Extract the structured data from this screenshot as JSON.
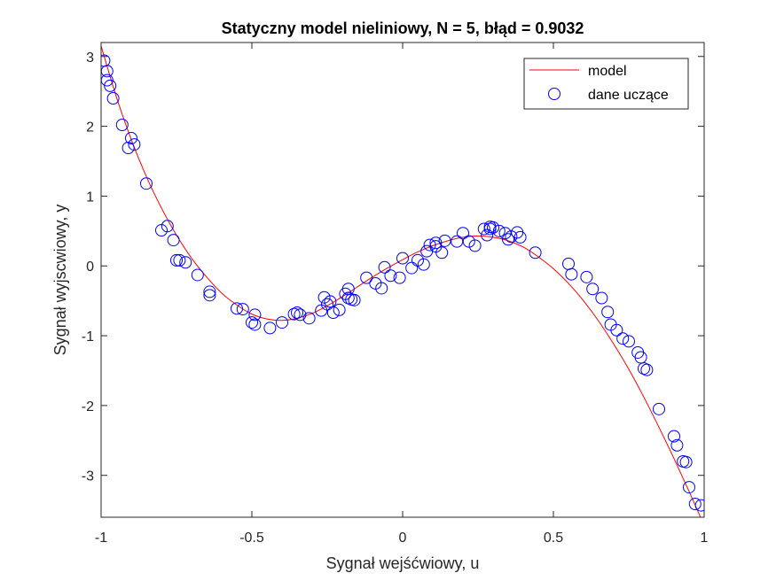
{
  "chart_data": {
    "type": "scatter",
    "title": "Statyczny model nieliniowy, N = 5, błąd = 0.9032",
    "xlabel": "Sygnał wejśćwiowy, u",
    "ylabel": "Sygnał wyjscwiowy, y",
    "xlim": [
      -1,
      1
    ],
    "ylim": [
      -3.6,
      3.2
    ],
    "x_ticks": [
      -1,
      -0.5,
      0,
      0.5,
      1
    ],
    "x_tick_labels": [
      "-1",
      "-0.5",
      "0",
      "0.5",
      "1"
    ],
    "y_ticks": [
      -3,
      -2,
      -1,
      0,
      1,
      2,
      3
    ],
    "y_tick_labels": [
      "-3",
      "-2",
      "-1",
      "0",
      "1",
      "2",
      "3"
    ],
    "grid": false,
    "legend": {
      "placement": "top-right",
      "entries": [
        "model",
        "dane uczące"
      ]
    },
    "series": [
      {
        "name": "model",
        "kind": "line",
        "color": "#ff0000",
        "x": [
          -1.0,
          -0.95,
          -0.9,
          -0.85,
          -0.8,
          -0.75,
          -0.7,
          -0.65,
          -0.6,
          -0.55,
          -0.5,
          -0.45,
          -0.4,
          -0.35,
          -0.3,
          -0.25,
          -0.2,
          -0.15,
          -0.1,
          -0.05,
          0.0,
          0.05,
          0.1,
          0.15,
          0.2,
          0.25,
          0.3,
          0.35,
          0.4,
          0.45,
          0.5,
          0.55,
          0.6,
          0.65,
          0.7,
          0.75,
          0.8,
          0.85,
          0.9,
          0.95,
          1.0
        ],
        "y": [
          3.15,
          2.43,
          1.81,
          1.28,
          0.83,
          0.44,
          0.11,
          -0.16,
          -0.39,
          -0.56,
          -0.69,
          -0.76,
          -0.78,
          -0.75,
          -0.68,
          -0.57,
          -0.44,
          -0.3,
          -0.16,
          -0.03,
          0.09,
          0.2,
          0.29,
          0.36,
          0.41,
          0.43,
          0.41,
          0.36,
          0.27,
          0.13,
          -0.04,
          -0.25,
          -0.5,
          -0.79,
          -1.12,
          -1.48,
          -1.88,
          -2.31,
          -2.76,
          -3.23,
          -3.72
        ]
      },
      {
        "name": "dane uczące",
        "kind": "scatter",
        "color": "#0000ff",
        "x": [
          -0.99,
          -0.98,
          -0.98,
          -0.97,
          -0.96,
          -0.93,
          -0.91,
          -0.9,
          -0.89,
          -0.85,
          -0.8,
          -0.78,
          -0.76,
          -0.75,
          -0.74,
          -0.72,
          -0.68,
          -0.64,
          -0.64,
          -0.55,
          -0.53,
          -0.5,
          -0.49,
          -0.49,
          -0.44,
          -0.4,
          -0.36,
          -0.35,
          -0.34,
          -0.31,
          -0.27,
          -0.26,
          -0.25,
          -0.24,
          -0.23,
          -0.21,
          -0.19,
          -0.18,
          -0.18,
          -0.17,
          -0.16,
          -0.12,
          -0.09,
          -0.07,
          -0.06,
          -0.04,
          -0.01,
          0.0,
          0.03,
          0.05,
          0.07,
          0.08,
          0.09,
          0.11,
          0.11,
          0.13,
          0.14,
          0.18,
          0.2,
          0.22,
          0.24,
          0.27,
          0.28,
          0.29,
          0.29,
          0.3,
          0.32,
          0.34,
          0.35,
          0.36,
          0.38,
          0.39,
          0.44,
          0.55,
          0.56,
          0.61,
          0.63,
          0.66,
          0.68,
          0.69,
          0.71,
          0.73,
          0.75,
          0.78,
          0.79,
          0.8,
          0.81,
          0.85,
          0.9,
          0.91,
          0.93,
          0.94,
          0.95,
          0.97,
          0.99
        ],
        "y": [
          2.94,
          2.79,
          2.66,
          2.58,
          2.4,
          2.02,
          1.69,
          1.83,
          1.74,
          1.18,
          0.51,
          0.57,
          0.37,
          0.08,
          0.08,
          0.05,
          -0.13,
          -0.37,
          -0.42,
          -0.61,
          -0.62,
          -0.81,
          -0.84,
          -0.7,
          -0.89,
          -0.81,
          -0.69,
          -0.67,
          -0.7,
          -0.75,
          -0.64,
          -0.45,
          -0.55,
          -0.51,
          -0.67,
          -0.63,
          -0.4,
          -0.33,
          -0.46,
          -0.48,
          -0.49,
          -0.17,
          -0.25,
          -0.32,
          -0.02,
          -0.14,
          -0.17,
          0.11,
          -0.03,
          0.08,
          0.02,
          0.21,
          0.3,
          0.33,
          0.28,
          0.19,
          0.36,
          0.35,
          0.47,
          0.35,
          0.29,
          0.53,
          0.44,
          0.56,
          0.53,
          0.55,
          0.5,
          0.47,
          0.38,
          0.42,
          0.48,
          0.41,
          0.19,
          0.03,
          -0.12,
          -0.16,
          -0.33,
          -0.46,
          -0.66,
          -0.84,
          -0.92,
          -1.04,
          -1.08,
          -1.24,
          -1.31,
          -1.47,
          -1.49,
          -2.05,
          -2.44,
          -2.57,
          -2.8,
          -2.81,
          -3.17,
          -3.41,
          -3.43
        ]
      }
    ]
  }
}
